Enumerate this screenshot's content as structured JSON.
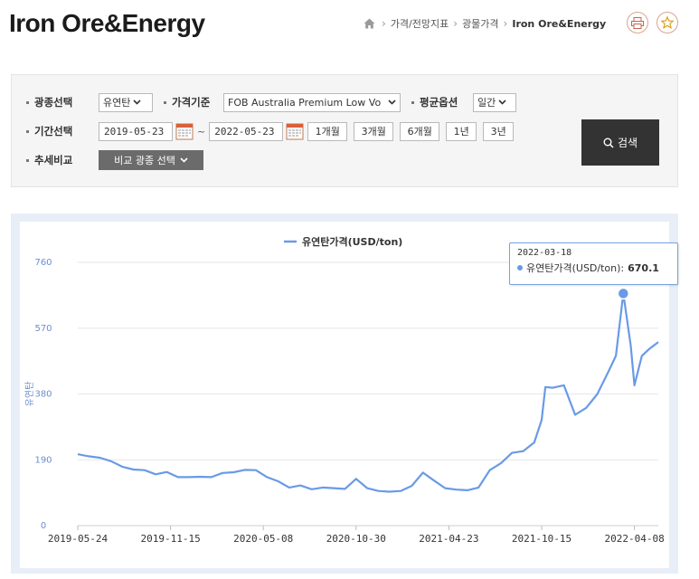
{
  "header": {
    "title": "Iron Ore&Energy",
    "breadcrumb": [
      "가격/전망지표",
      "광물가격",
      "Iron Ore&Energy"
    ]
  },
  "search": {
    "mineral_label": "광종선택",
    "mineral_value": "유연탄",
    "price_basis_label": "가격기준",
    "price_basis_value": "FOB Australia Premium Low Vo",
    "average_label": "평균옵션",
    "average_value": "일간",
    "period_label": "기간선택",
    "start_date": "2019-05-23",
    "tilde": "~",
    "end_date": "2022-05-23",
    "period_buttons": [
      "1개월",
      "3개월",
      "6개월",
      "1년",
      "3년"
    ],
    "trend_label": "추세비교",
    "compare_button": "비교 광종 선택",
    "search_button": "검색"
  },
  "colors": {
    "line": "#6a9ae6",
    "accent": "#333333"
  },
  "chart_data": {
    "type": "line",
    "title": "",
    "legend": [
      "유연탄가격(USD/ton)"
    ],
    "legend_position": "top-center",
    "ylabel": "유연탄",
    "xlabel": "",
    "ylim": [
      0,
      760
    ],
    "y_ticks": [
      0,
      190,
      380,
      570,
      760
    ],
    "y_tick_labels": [
      "0",
      "190",
      "380",
      "570",
      "760"
    ],
    "grid": true,
    "x_tick_labels": [
      "2019-05-24",
      "2019-11-15",
      "2020-05-08",
      "2020-10-30",
      "2021-04-23",
      "2021-10-15",
      "2022-04-08"
    ],
    "x_range": [
      "2019-05-24",
      "2022-05-23"
    ],
    "series": [
      {
        "name": "유연탄가격(USD/ton)",
        "points": [
          [
            "2019-05-24",
            206
          ],
          [
            "2019-06-14",
            200
          ],
          [
            "2019-07-05",
            196
          ],
          [
            "2019-07-26",
            186
          ],
          [
            "2019-08-16",
            170
          ],
          [
            "2019-09-06",
            162
          ],
          [
            "2019-09-27",
            160
          ],
          [
            "2019-10-18",
            148
          ],
          [
            "2019-11-08",
            155
          ],
          [
            "2019-11-29",
            140
          ],
          [
            "2019-12-20",
            140
          ],
          [
            "2020-01-10",
            141
          ],
          [
            "2020-01-31",
            140
          ],
          [
            "2020-02-21",
            152
          ],
          [
            "2020-03-13",
            154
          ],
          [
            "2020-04-03",
            161
          ],
          [
            "2020-04-24",
            160
          ],
          [
            "2020-05-15",
            140
          ],
          [
            "2020-06-05",
            128
          ],
          [
            "2020-06-26",
            110
          ],
          [
            "2020-07-17",
            116
          ],
          [
            "2020-08-07",
            105
          ],
          [
            "2020-08-28",
            110
          ],
          [
            "2020-09-18",
            108
          ],
          [
            "2020-10-09",
            106
          ],
          [
            "2020-10-30",
            135
          ],
          [
            "2020-11-20",
            108
          ],
          [
            "2020-12-11",
            100
          ],
          [
            "2021-01-01",
            98
          ],
          [
            "2021-01-22",
            100
          ],
          [
            "2021-02-12",
            115
          ],
          [
            "2021-03-05",
            153
          ],
          [
            "2021-03-26",
            130
          ],
          [
            "2021-04-16",
            108
          ],
          [
            "2021-05-07",
            104
          ],
          [
            "2021-05-28",
            102
          ],
          [
            "2021-06-18",
            110
          ],
          [
            "2021-07-09",
            160
          ],
          [
            "2021-07-30",
            180
          ],
          [
            "2021-08-20",
            210
          ],
          [
            "2021-09-10",
            215
          ],
          [
            "2021-10-01",
            240
          ],
          [
            "2021-10-15",
            305
          ],
          [
            "2021-10-22",
            400
          ],
          [
            "2021-11-05",
            398
          ],
          [
            "2021-11-26",
            405
          ],
          [
            "2021-12-17",
            320
          ],
          [
            "2022-01-07",
            340
          ],
          [
            "2022-01-28",
            380
          ],
          [
            "2022-02-18",
            445
          ],
          [
            "2022-03-04",
            490
          ],
          [
            "2022-03-18",
            670.1
          ],
          [
            "2022-04-01",
            520
          ],
          [
            "2022-04-08",
            405
          ],
          [
            "2022-04-22",
            490
          ],
          [
            "2022-05-06",
            510
          ],
          [
            "2022-05-23",
            530
          ]
        ]
      }
    ],
    "tooltip": {
      "date": "2022-03-18",
      "series": "유연탄가격(USD/ton):",
      "value": "670.1"
    }
  }
}
